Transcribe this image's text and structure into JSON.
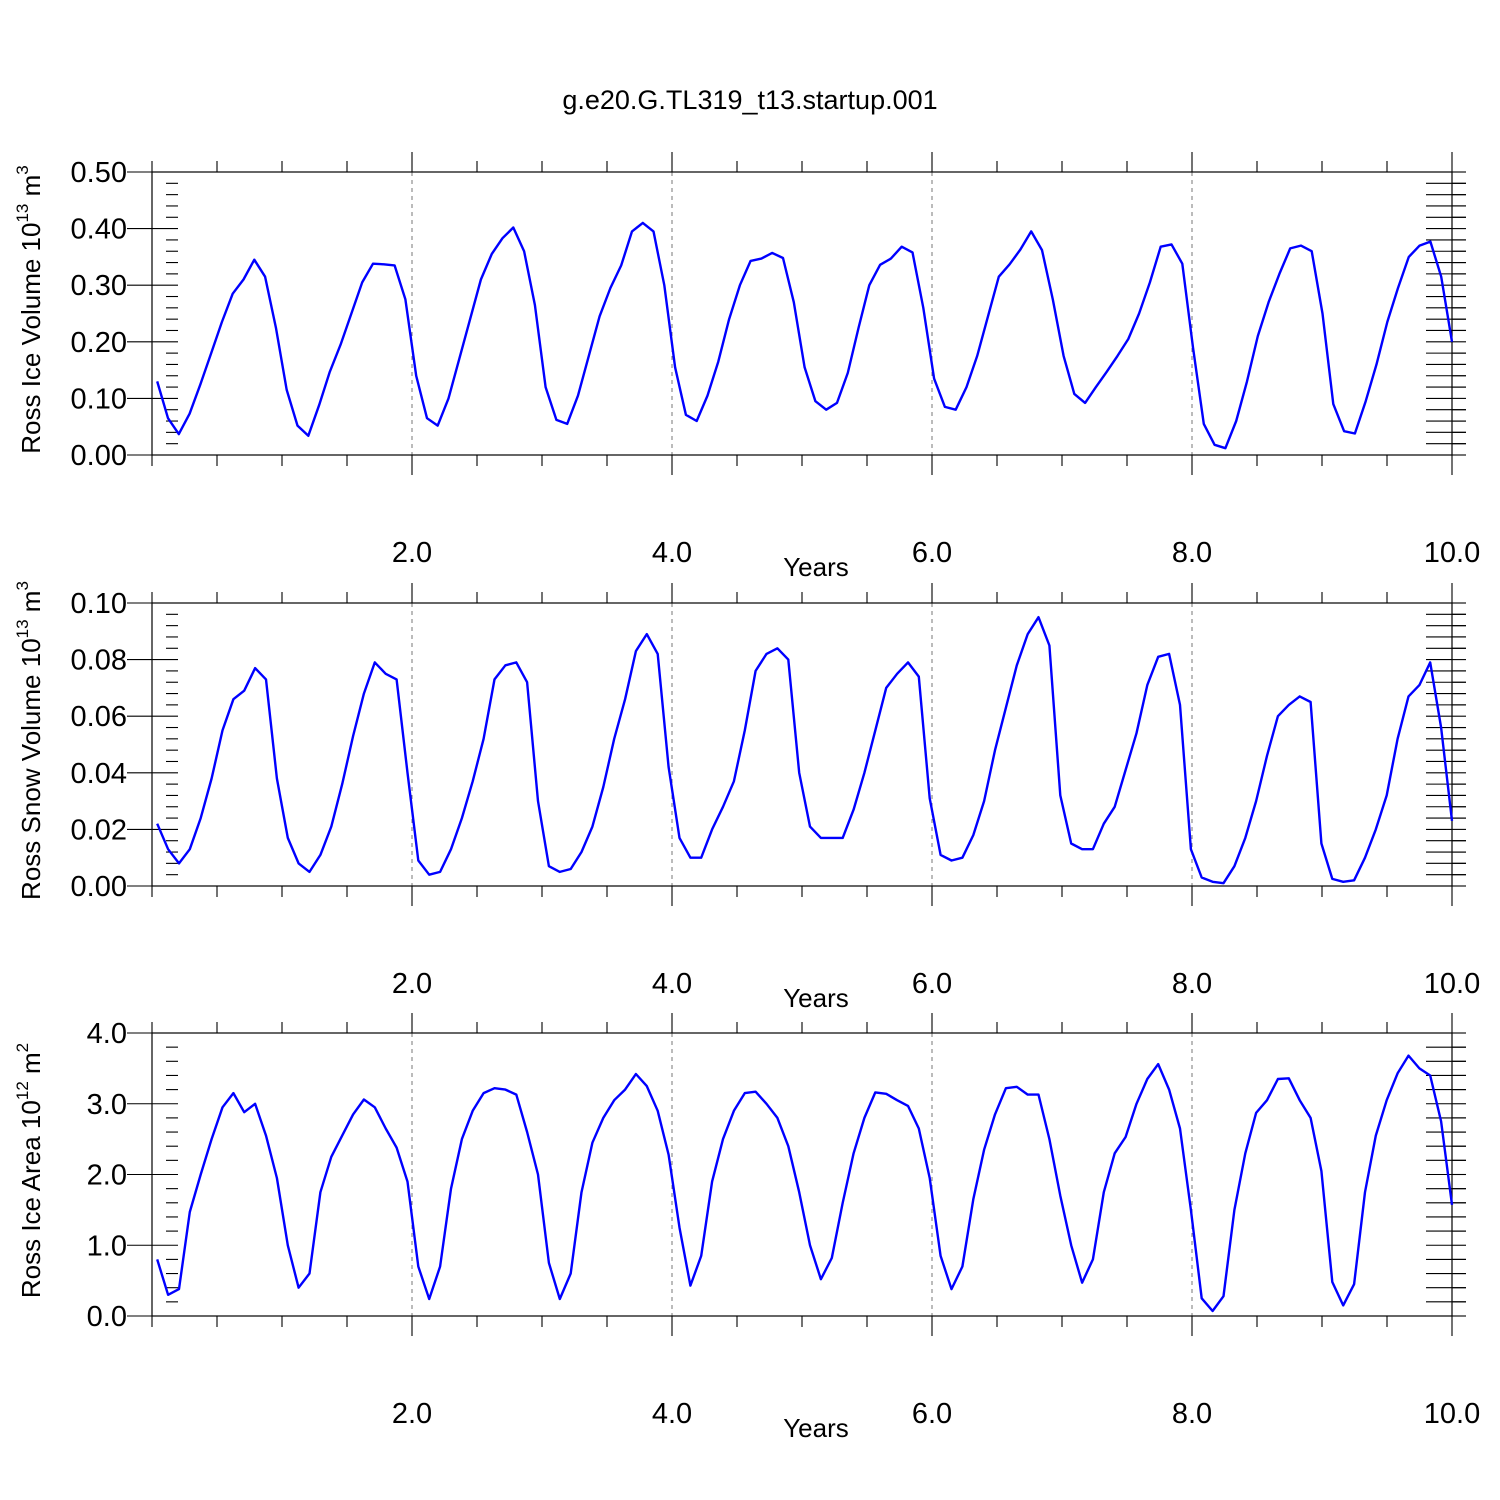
{
  "figure": {
    "title": "g.e20.G.TL319_t13.startup.001"
  },
  "chart_data": [
    {
      "type": "line",
      "ylabel": {
        "text": "Ross Ice Volume 10",
        "sup1": "13",
        "unit": " m",
        "sup2": "3"
      },
      "xlabel": "Years",
      "xlim": [
        0,
        10
      ],
      "ylim": [
        0,
        0.5
      ],
      "x_ticks": [
        2,
        4,
        6,
        8,
        10
      ],
      "x_tick_labels": [
        "2.0",
        "4.0",
        "6.0",
        "8.0",
        "10.0"
      ],
      "y_ticks": [
        0,
        0.1,
        0.2,
        0.3,
        0.4,
        0.5
      ],
      "y_tick_labels": [
        "0.00",
        "0.10",
        "0.20",
        "0.30",
        "0.40",
        "0.50"
      ],
      "grid": "vertical dashed at major x ticks",
      "color": "#0000ff",
      "series": [
        {
          "y": [
            0.13,
            0.065,
            0.037,
            0.073,
            0.125,
            0.18,
            0.235,
            0.285,
            0.31,
            0.345,
            0.315,
            0.225,
            0.115,
            0.052,
            0.034,
            0.088,
            0.147,
            0.195,
            0.25,
            0.305,
            0.338,
            0.337,
            0.335,
            0.275,
            0.14,
            0.065,
            0.052,
            0.1,
            0.17,
            0.24,
            0.31,
            0.355,
            0.383,
            0.402,
            0.36,
            0.265,
            0.12,
            0.062,
            0.055,
            0.105,
            0.175,
            0.245,
            0.295,
            0.335,
            0.395,
            0.41,
            0.395,
            0.3,
            0.155,
            0.071,
            0.06,
            0.105,
            0.165,
            0.24,
            0.3,
            0.343,
            0.347,
            0.357,
            0.348,
            0.27,
            0.155,
            0.095,
            0.08,
            0.092,
            0.145,
            0.225,
            0.3,
            0.336,
            0.347,
            0.368,
            0.358,
            0.26,
            0.135,
            0.085,
            0.08,
            0.12,
            0.175,
            0.245,
            0.315,
            0.337,
            0.363,
            0.395,
            0.362,
            0.275,
            0.175,
            0.108,
            0.092,
            0.12,
            0.147,
            0.175,
            0.205,
            0.25,
            0.305,
            0.368,
            0.372,
            0.338,
            0.19,
            0.055,
            0.018,
            0.012,
            0.06,
            0.13,
            0.21,
            0.27,
            0.32,
            0.365,
            0.37,
            0.36,
            0.25,
            0.09,
            0.042,
            0.038,
            0.095,
            0.16,
            0.235,
            0.295,
            0.35,
            0.37,
            0.377,
            0.315,
            0.2
          ]
        }
      ]
    },
    {
      "type": "line",
      "ylabel": {
        "text": "Ross Snow Volume 10",
        "sup1": "13",
        "unit": " m",
        "sup2": "3"
      },
      "xlabel": "Years",
      "xlim": [
        0,
        10
      ],
      "ylim": [
        0,
        0.1
      ],
      "x_ticks": [
        2,
        4,
        6,
        8,
        10
      ],
      "x_tick_labels": [
        "2.0",
        "4.0",
        "6.0",
        "8.0",
        "10.0"
      ],
      "y_ticks": [
        0,
        0.02,
        0.04,
        0.06,
        0.08,
        0.1
      ],
      "y_tick_labels": [
        "0.00",
        "0.02",
        "0.04",
        "0.06",
        "0.08",
        "0.10"
      ],
      "grid": "vertical dashed at major x ticks",
      "color": "#0000ff",
      "series": [
        {
          "y": [
            0.022,
            0.013,
            0.008,
            0.013,
            0.024,
            0.038,
            0.055,
            0.066,
            0.069,
            0.077,
            0.073,
            0.038,
            0.017,
            0.008,
            0.005,
            0.011,
            0.021,
            0.036,
            0.053,
            0.068,
            0.079,
            0.075,
            0.073,
            0.04,
            0.009,
            0.004,
            0.005,
            0.013,
            0.024,
            0.037,
            0.052,
            0.073,
            0.078,
            0.079,
            0.072,
            0.03,
            0.007,
            0.005,
            0.006,
            0.012,
            0.021,
            0.035,
            0.052,
            0.066,
            0.083,
            0.089,
            0.082,
            0.042,
            0.017,
            0.01,
            0.01,
            0.02,
            0.028,
            0.037,
            0.055,
            0.076,
            0.082,
            0.084,
            0.08,
            0.04,
            0.021,
            0.017,
            0.017,
            0.017,
            0.027,
            0.04,
            0.055,
            0.07,
            0.075,
            0.079,
            0.074,
            0.031,
            0.011,
            0.009,
            0.01,
            0.018,
            0.03,
            0.048,
            0.063,
            0.078,
            0.089,
            0.095,
            0.085,
            0.032,
            0.015,
            0.013,
            0.013,
            0.022,
            0.028,
            0.041,
            0.054,
            0.071,
            0.081,
            0.082,
            0.064,
            0.013,
            0.003,
            0.0015,
            0.001,
            0.007,
            0.017,
            0.03,
            0.046,
            0.06,
            0.064,
            0.067,
            0.065,
            0.015,
            0.0025,
            0.0015,
            0.002,
            0.01,
            0.02,
            0.032,
            0.052,
            0.067,
            0.071,
            0.079,
            0.056,
            0.023
          ]
        }
      ]
    },
    {
      "type": "line",
      "ylabel": {
        "text": "Ross Ice Area 10",
        "sup1": "12",
        "unit": " m",
        "sup2": "2"
      },
      "xlabel": "Years",
      "xlim": [
        0,
        10
      ],
      "ylim": [
        0,
        4
      ],
      "x_ticks": [
        2,
        4,
        6,
        8,
        10
      ],
      "x_tick_labels": [
        "2.0",
        "4.0",
        "6.0",
        "8.0",
        "10.0"
      ],
      "y_ticks": [
        0,
        1,
        2,
        3,
        4
      ],
      "y_tick_labels": [
        "0.0",
        "1.0",
        "2.0",
        "3.0",
        "4.0"
      ],
      "grid": "vertical dashed at major x ticks",
      "color": "#0000ff",
      "series": [
        {
          "y": [
            0.8,
            0.3,
            0.38,
            1.47,
            2.0,
            2.5,
            2.95,
            3.15,
            2.88,
            3.0,
            2.55,
            1.95,
            1.0,
            0.4,
            0.6,
            1.75,
            2.25,
            2.55,
            2.85,
            3.06,
            2.95,
            2.65,
            2.38,
            1.9,
            0.7,
            0.24,
            0.7,
            1.8,
            2.5,
            2.9,
            3.15,
            3.22,
            3.2,
            3.13,
            2.6,
            2.0,
            0.75,
            0.24,
            0.6,
            1.75,
            2.45,
            2.8,
            3.05,
            3.2,
            3.42,
            3.25,
            2.9,
            2.28,
            1.25,
            0.43,
            0.85,
            1.9,
            2.5,
            2.9,
            3.15,
            3.17,
            3.0,
            2.8,
            2.4,
            1.75,
            1.0,
            0.52,
            0.82,
            1.6,
            2.3,
            2.8,
            3.16,
            3.14,
            3.05,
            2.97,
            2.65,
            1.95,
            0.85,
            0.38,
            0.7,
            1.65,
            2.35,
            2.85,
            3.22,
            3.24,
            3.13,
            3.13,
            2.5,
            1.7,
            1.0,
            0.47,
            0.8,
            1.75,
            2.3,
            2.53,
            3.0,
            3.35,
            3.56,
            3.2,
            2.65,
            1.5,
            0.25,
            0.07,
            0.28,
            1.5,
            2.3,
            2.87,
            3.05,
            3.35,
            3.36,
            3.05,
            2.8,
            2.05,
            0.48,
            0.15,
            0.45,
            1.75,
            2.55,
            3.05,
            3.43,
            3.68,
            3.5,
            3.4,
            2.75,
            1.57
          ]
        }
      ]
    }
  ]
}
